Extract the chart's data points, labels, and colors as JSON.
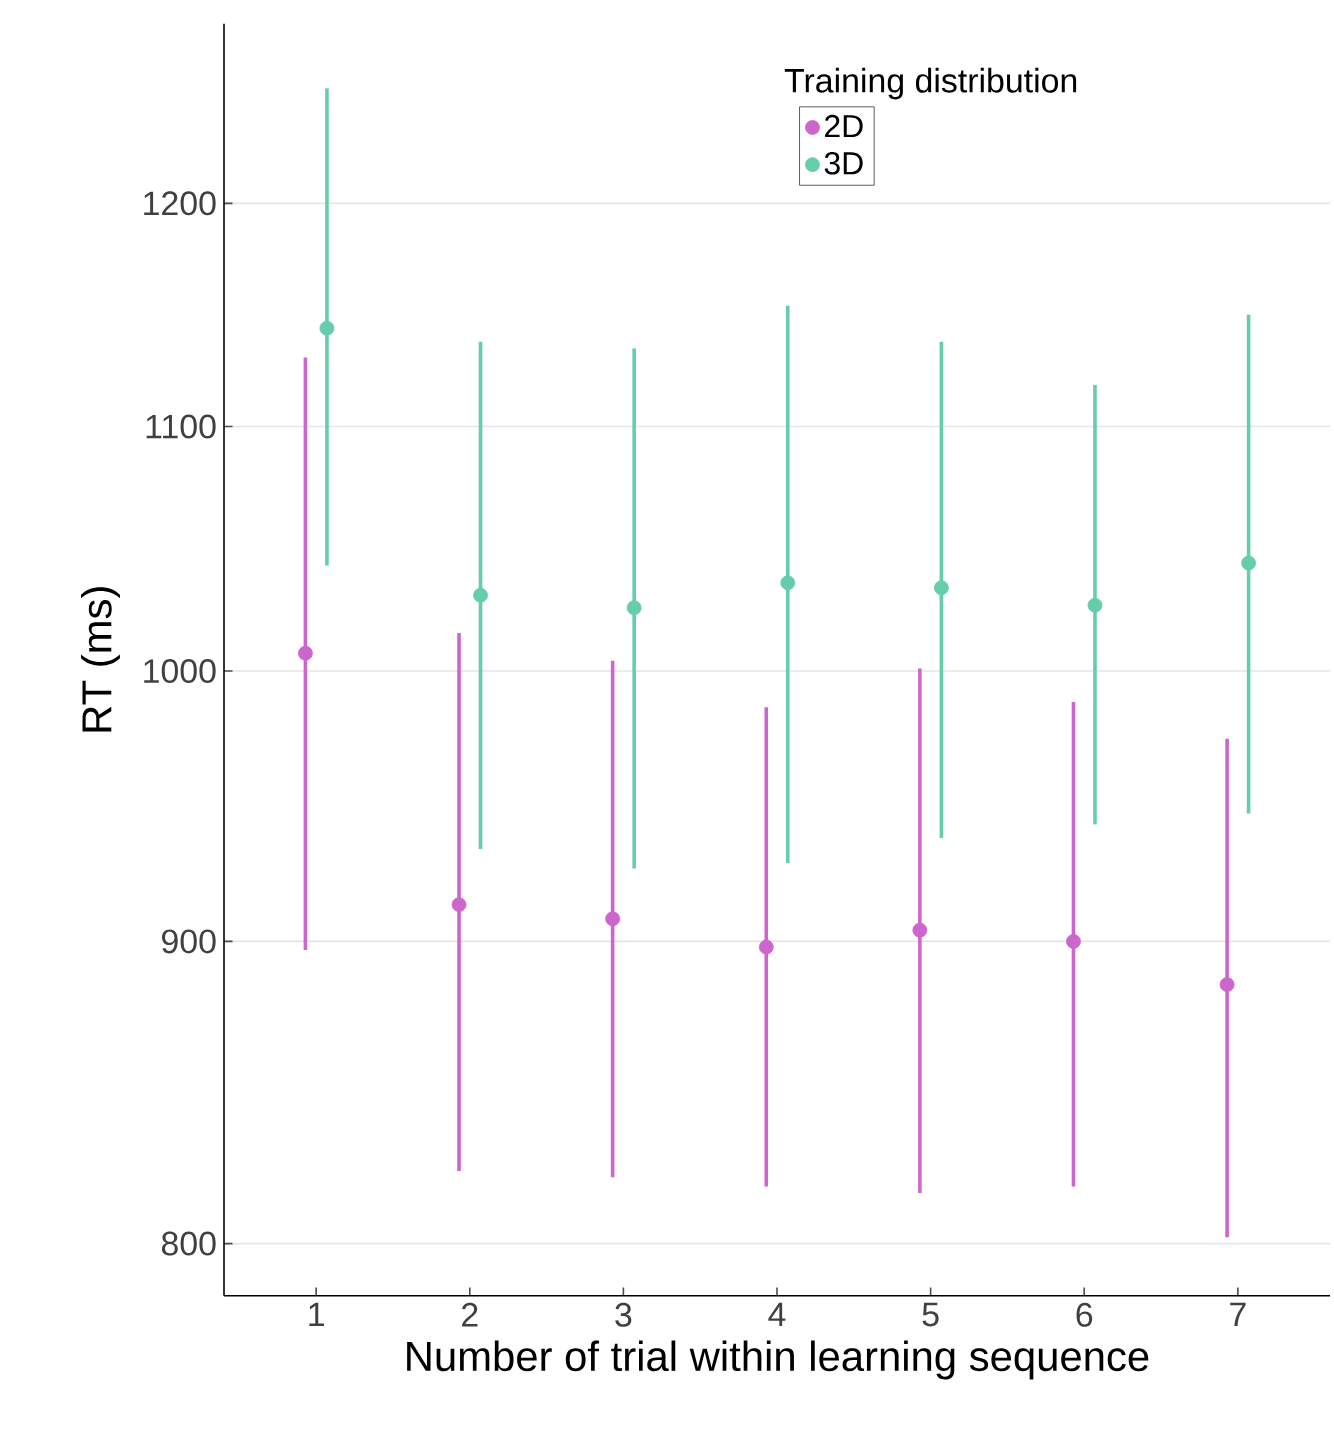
{
  "chart_data": {
    "type": "scatter",
    "xlabel": "Number of trial within learning sequence",
    "ylabel": "RT (ms)",
    "legend_title": "Training distribution",
    "categories": [
      "1",
      "2",
      "3",
      "4",
      "5",
      "6",
      "7"
    ],
    "series": [
      {
        "name": "2D",
        "color": "#cc66cc",
        "values": [
          1007,
          913,
          908,
          898,
          904,
          900,
          885
        ],
        "errors": [
          [
            897,
            1130
          ],
          [
            823,
            1015
          ],
          [
            821,
            1004
          ],
          [
            818,
            986
          ],
          [
            816,
            1001
          ],
          [
            818,
            988
          ],
          [
            802,
            974
          ]
        ]
      },
      {
        "name": "3D",
        "color": "#66cdaa",
        "values": [
          1143,
          1030,
          1025,
          1035,
          1033,
          1026,
          1043
        ],
        "errors": [
          [
            1042,
            1255
          ],
          [
            933,
            1137
          ],
          [
            926,
            1134
          ],
          [
            928,
            1153
          ],
          [
            937,
            1137
          ],
          [
            942,
            1118
          ],
          [
            946,
            1149
          ]
        ]
      }
    ],
    "log": "y",
    "ylim": [
      784,
      1287
    ],
    "yticks": [
      800,
      900,
      1000,
      1100,
      1200
    ],
    "grid": "y",
    "legend": "top right",
    "marker": "circle"
  }
}
